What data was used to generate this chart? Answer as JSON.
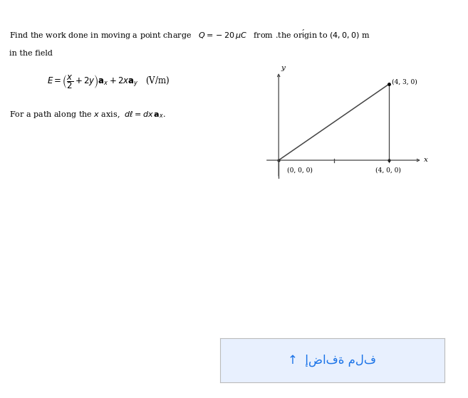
{
  "background_color": "#ffffff",
  "origin_label": "(0, 0, 0)",
  "point_x_label": "(4, 0, 0)",
  "point_xy_label": "(4, 3, 0)",
  "axis_color": "#333333",
  "line_color": "#444444",
  "label_fontsize": 6.5,
  "upload_text": "↑  إضافة ملف",
  "upload_box_color": "#e8f0fe",
  "upload_text_color": "#1a73e8",
  "fig_w": 6.57,
  "fig_h": 5.59,
  "dpi": 100
}
